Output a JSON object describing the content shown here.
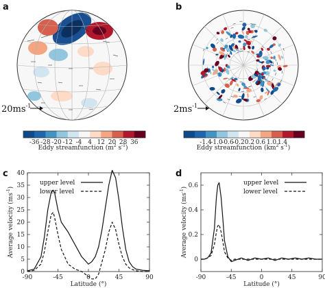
{
  "panel_labels": {
    "a": "a",
    "b": "b",
    "c": "c",
    "d": "d"
  },
  "maps": {
    "a": {
      "scale_label": "20ms",
      "scale_sup": "-1",
      "colorbar_title": "Eddy streamfunction (m",
      "colorbar_unit_sup": "2",
      "colorbar_unit_mid": " s",
      "colorbar_unit_sup2": "-1",
      "colorbar_close": ")",
      "colorbar_ticks": [
        "-36",
        "-28",
        "-20",
        "-12",
        "-4",
        "4",
        "12",
        "20",
        "28",
        "36"
      ],
      "colorbar_colors": [
        "#0f4a8a",
        "#2166ac",
        "#4393c3",
        "#92c5de",
        "#d1e5f0",
        "#f7f7f7",
        "#fddbc7",
        "#f4a582",
        "#d6604d",
        "#b2182b",
        "#67001f"
      ]
    },
    "b": {
      "scale_label": "2ms",
      "scale_sup": "-1",
      "colorbar_title": "Eddy streamfunction (km",
      "colorbar_unit_sup": "2",
      "colorbar_unit_mid": " s",
      "colorbar_unit_sup2": "-1",
      "colorbar_close": ")",
      "colorbar_ticks": [
        "-1.4",
        "-1.0",
        "-0.6",
        "-0.2",
        "0.2",
        "0.6",
        "1.0",
        "1.4"
      ],
      "colorbar_colors": [
        "#0f4a8a",
        "#2166ac",
        "#4393c3",
        "#92c5de",
        "#d1e5f0",
        "#f7f7f7",
        "#fddbc7",
        "#f4a582",
        "#d6604d",
        "#b2182b",
        "#67001f"
      ]
    }
  },
  "chart_data": [
    {
      "type": "line",
      "panel": "c",
      "xlabel": "Latitude (°)",
      "ylabel": "Average velocity (ms",
      "ylabel_sup": "-1",
      "ylabel_close": ")",
      "xlim": [
        -90,
        90
      ],
      "ylim": [
        0,
        40
      ],
      "xticks": [
        "-90",
        "-45",
        "0",
        "45",
        "90"
      ],
      "yticks": [
        "0",
        "5",
        "10",
        "15",
        "20",
        "25",
        "30",
        "35",
        "40"
      ],
      "legend_position": "top-left",
      "x": [
        -90,
        -80,
        -70,
        -65,
        -60,
        -55,
        -52,
        -50,
        -45,
        -40,
        -30,
        -20,
        -10,
        0,
        5,
        10,
        15,
        20,
        25,
        30,
        35,
        40,
        45,
        50,
        55,
        60,
        65,
        70,
        80,
        90
      ],
      "series": [
        {
          "name": "upper level",
          "style": "solid",
          "values": [
            0.3,
            1,
            6,
            14,
            25,
            32,
            33,
            32,
            25,
            20,
            16,
            11,
            6,
            3,
            4,
            6,
            10,
            17,
            26,
            35,
            41,
            38,
            29,
            18,
            9,
            4,
            2,
            1,
            0.5,
            0.3
          ]
        },
        {
          "name": "lower level",
          "style": "dashed",
          "values": [
            0,
            0.5,
            3,
            8,
            16,
            23,
            24,
            22,
            15,
            9,
            3,
            1,
            0,
            -2,
            -3,
            -3,
            -1,
            4,
            9,
            16,
            20,
            17,
            11,
            6,
            3,
            1.5,
            0.8,
            0.3,
            0,
            0
          ]
        }
      ]
    },
    {
      "type": "line",
      "panel": "d",
      "xlabel": "Latitude (°)",
      "ylabel": "Average velocity (ms",
      "ylabel_sup": "-1",
      "ylabel_close": ")",
      "xlim": [
        -90,
        90
      ],
      "ylim": [
        -0.1,
        0.7
      ],
      "xticks": [
        "-90",
        "-45",
        "0",
        "45",
        "90"
      ],
      "yticks": [
        "0",
        "0.2",
        "0.4",
        "0.6"
      ],
      "legend_position": "top-right",
      "x": [
        -90,
        -85,
        -80,
        -75,
        -70,
        -67,
        -65,
        -63,
        -60,
        -57,
        -55,
        -50,
        -45,
        -40,
        -30,
        -20,
        -10,
        0,
        10,
        20,
        30,
        40,
        50,
        60,
        70,
        80,
        90
      ],
      "series": [
        {
          "name": "upper level",
          "style": "solid",
          "values": [
            0,
            0,
            0.01,
            0.05,
            0.25,
            0.5,
            0.6,
            0.62,
            0.5,
            0.3,
            0.15,
            0.02,
            -0.02,
            -0.01,
            0.01,
            -0.01,
            0.01,
            0,
            0.01,
            -0.01,
            0.01,
            0,
            0.01,
            0,
            0.01,
            0,
            0
          ]
        },
        {
          "name": "lower level",
          "style": "dashed",
          "values": [
            0,
            0,
            0.01,
            0.03,
            0.12,
            0.22,
            0.27,
            0.28,
            0.22,
            0.13,
            0.06,
            0.01,
            -0.01,
            0,
            0,
            0,
            0,
            0,
            0,
            0,
            0,
            0,
            0,
            0,
            0,
            0,
            0
          ]
        }
      ]
    }
  ]
}
